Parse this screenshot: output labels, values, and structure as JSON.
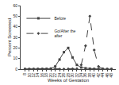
{
  "chart_data": {
    "type": "line",
    "xlabel": "Weeks of Gestation",
    "ylabel": "Percent Screened",
    "x": [
      8,
      10,
      12,
      14,
      16,
      18,
      20,
      22,
      24,
      26,
      28,
      30,
      32,
      34,
      36,
      38,
      40,
      42,
      44,
      46,
      48
    ],
    "series": [
      {
        "name": "Before",
        "color": "#444444",
        "line_style": "solid",
        "marker": "square",
        "values": [
          0.0,
          0.0,
          0.0,
          0.1,
          0.1,
          0.2,
          0.5,
          2.5,
          9.0,
          16.0,
          20.0,
          11.0,
          4.0,
          1.5,
          0.8,
          0.4,
          0.2,
          0.1,
          0.0,
          0.0,
          0.0
        ]
      },
      {
        "name": "Go/After the\nafter",
        "color": "#444444",
        "line_style": "dashed",
        "marker": "diamond",
        "values": [
          0.0,
          0.0,
          0.0,
          0.0,
          0.0,
          0.0,
          0.0,
          0.0,
          0.0,
          0.1,
          0.2,
          0.3,
          0.5,
          4.0,
          22.0,
          50.0,
          18.0,
          2.5,
          0.3,
          0.1,
          0.0
        ]
      }
    ],
    "xlim": [
      6,
      50
    ],
    "ylim": [
      0,
      60
    ],
    "xticks": [
      8,
      10,
      12,
      14,
      16,
      18,
      20,
      22,
      24,
      26,
      28,
      30,
      32,
      34,
      36,
      38,
      40,
      42,
      44,
      46,
      48
    ],
    "yticks": [
      0,
      10,
      20,
      30,
      40,
      50,
      60
    ],
    "grid": false,
    "legend": "upper left"
  }
}
